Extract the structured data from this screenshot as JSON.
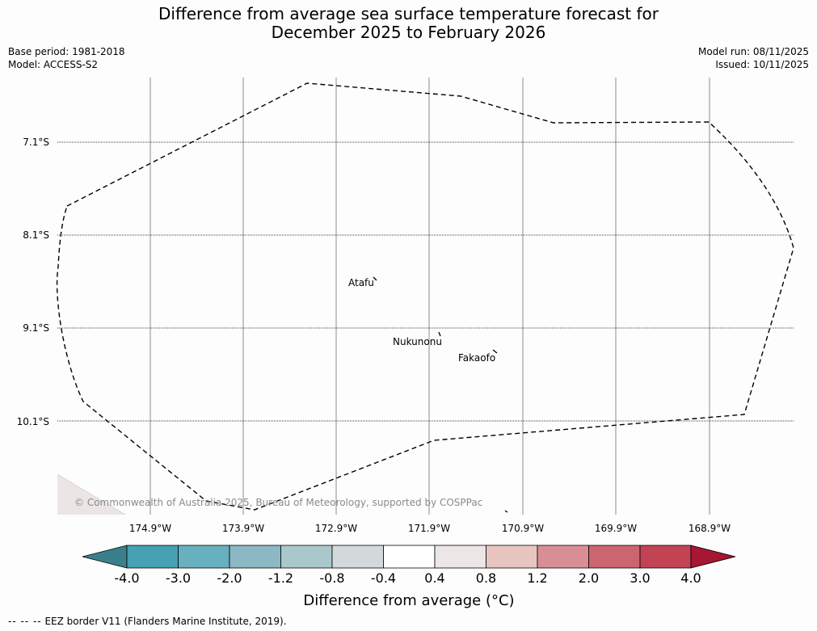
{
  "title": {
    "line1": "Difference from average sea surface temperature forecast for",
    "line2": "December 2025 to February 2026"
  },
  "meta": {
    "base_period": "Base period: 1981-2018",
    "model": "Model: ACCESS-S2",
    "model_run": "Model run: 08/11/2025",
    "issued": "Issued: 10/11/2025"
  },
  "map": {
    "lon_labels": [
      "174.9°W",
      "173.9°W",
      "172.9°W",
      "171.9°W",
      "170.9°W",
      "169.9°W",
      "168.9°W"
    ],
    "lat_labels": [
      "7.1°S",
      "8.1°S",
      "9.1°S",
      "10.1°S"
    ],
    "places": [
      "Atafu",
      "Nukunonu",
      "Fakaofo"
    ],
    "copyright": "© Commonwealth of Australia 2025, Bureau of Meteorology, supported by COSPPac",
    "ocean_color": "#fdfdfd",
    "land_patch_color": "#ece5e5"
  },
  "colorbar": {
    "tick_labels": [
      "-4.0",
      "-3.0",
      "-2.0",
      "-1.2",
      "-0.8",
      "-0.4",
      "0.4",
      "0.8",
      "1.2",
      "2.0",
      "3.0",
      "4.0"
    ],
    "colors": [
      "#3a7f8c",
      "#45a1b3",
      "#67b0bf",
      "#8bb8c3",
      "#a9c8cc",
      "#d3d9da",
      "#ffffff",
      "#ede6e6",
      "#e9c5c2",
      "#d98e95",
      "#cb6670",
      "#c24354",
      "#a71632"
    ],
    "label": "Difference from average (°C)"
  },
  "footnote": {
    "dash_symbol": "-- -- --",
    "text": "EEZ border V11 (Flanders Marine Institute, 2019)."
  }
}
